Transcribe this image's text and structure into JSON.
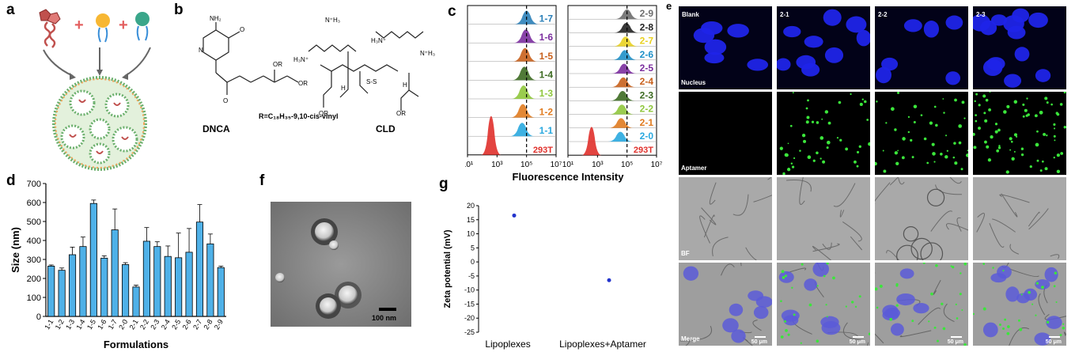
{
  "panels": {
    "a": "a",
    "b": "b",
    "c": "c",
    "d": "d",
    "e": "e",
    "f": "f",
    "g": "g"
  },
  "b": {
    "dnca_name": "DNCA",
    "cld_name": "CLD",
    "r_group": "R=C₁₈H₃₅-9,10-cis-vinyl",
    "atoms": {
      "nh2": "NH₂",
      "n": "N",
      "o": "O",
      "h": "H",
      "or": "OR",
      "nh3a": "N⁺H₃",
      "nh3b": "N⁺H₃",
      "h3na": "H₃N⁺",
      "h3nb": "H₃N⁺",
      "ss": "S-S"
    }
  },
  "c": {
    "xlabel": "Fluorescence Intensity",
    "ticks": [
      "10¹",
      "10³",
      "10⁵",
      "10⁷"
    ],
    "left": {
      "labels": [
        "1-7",
        "1-6",
        "1-5",
        "1-4",
        "1-3",
        "1-2",
        "1-1",
        "293T"
      ],
      "colors": [
        "#2a7fb8",
        "#7b2d9e",
        "#c8601c",
        "#3d6b22",
        "#8fc63c",
        "#e07b1f",
        "#29a8df",
        "#e0302b"
      ]
    },
    "right": {
      "labels": [
        "2-9",
        "2-8",
        "2-7",
        "2-6",
        "2-5",
        "2-4",
        "2-3",
        "2-2",
        "2-1",
        "2-0",
        "293T"
      ],
      "colors": [
        "#6d6d6d",
        "#222222",
        "#e8d020",
        "#1e90c8",
        "#7b2d9e",
        "#c8601c",
        "#3d6b22",
        "#8fc63c",
        "#e07b1f",
        "#29a8df",
        "#e0302b"
      ]
    }
  },
  "chart_data": [
    {
      "type": "bar",
      "title": "",
      "xlabel": "Formulations",
      "ylabel": "Size (nm)",
      "ylim": [
        0,
        700
      ],
      "yticks": [
        0,
        100,
        200,
        300,
        400,
        500,
        600,
        700
      ],
      "categories": [
        "1-1",
        "1-2",
        "1-3",
        "1-4",
        "1-5",
        "1-6",
        "1-7",
        "2-0",
        "2-1",
        "2-2",
        "2-3",
        "2-4",
        "2-5",
        "2-6",
        "2-7",
        "2-8",
        "2-9"
      ],
      "values": [
        265,
        243,
        325,
        368,
        595,
        307,
        456,
        273,
        155,
        396,
        368,
        316,
        309,
        338,
        497,
        382,
        257
      ],
      "errors": [
        6,
        12,
        40,
        50,
        18,
        12,
        110,
        10,
        10,
        72,
        25,
        55,
        130,
        125,
        92,
        52,
        8
      ],
      "bar_color": "#4fb1e8"
    },
    {
      "type": "scatter",
      "title": "",
      "xlabel": "",
      "ylabel": "Zeta potential (mV)",
      "ylim": [
        -25,
        20
      ],
      "yticks": [
        20,
        15,
        10,
        5,
        0,
        -5,
        -10,
        -15,
        -20,
        -25
      ],
      "categories": [
        "Lipoplexes",
        "Lipoplexes+Aptamer"
      ],
      "values": [
        16.5,
        -6.5
      ],
      "point_color": "#2233cc"
    }
  ],
  "f": {
    "scale": "100 nm"
  },
  "e": {
    "columns": [
      "Blank",
      "2-1",
      "2-2",
      "2-3"
    ],
    "rows": [
      "Nucleus",
      "Aptamer",
      "BF",
      "Merge"
    ],
    "scalebar": "50 μm"
  }
}
